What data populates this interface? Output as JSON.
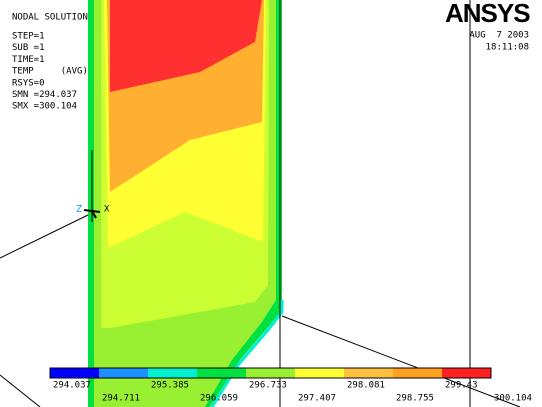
{
  "header": {
    "title": "NODAL SOLUTION",
    "lines": [
      "STEP=1",
      "SUB =1",
      "TIME=1",
      "TEMP     (AVG)",
      "RSYS=0",
      "SMN =294.037",
      "SMX =300.104"
    ]
  },
  "logo": "ANSYS",
  "date": "AUG  7 2003",
  "time": "18:11:08",
  "triad": {
    "z": "Z",
    "x": "X"
  },
  "legend": {
    "colors": [
      "#0000ff",
      "#1e90ff",
      "#00f0d0",
      "#00e040",
      "#99f033",
      "#ffff33",
      "#ffc040",
      "#ffa020",
      "#ff2020"
    ],
    "levels": [
      294.037,
      294.711,
      295.385,
      296.059,
      296.733,
      297.407,
      298.081,
      298.755,
      299.43,
      300.104
    ]
  }
}
